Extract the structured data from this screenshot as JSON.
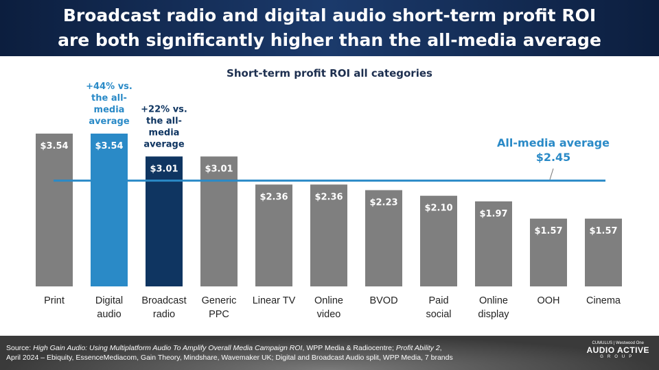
{
  "header": {
    "title_line1": "Broadcast radio and digital audio short-term profit ROI",
    "title_line2": "are both significantly higher than the all-media average"
  },
  "chart_data": {
    "type": "bar",
    "title": "Short-term profit ROI all categories",
    "categories": [
      [
        "Print"
      ],
      [
        "Digital",
        "audio"
      ],
      [
        "Broadcast",
        "radio"
      ],
      [
        "Generic",
        "PPC"
      ],
      [
        "Linear TV"
      ],
      [
        "Online",
        "video"
      ],
      [
        "BVOD"
      ],
      [
        "Paid",
        "social"
      ],
      [
        "Online",
        "display"
      ],
      [
        "OOH"
      ],
      [
        "Cinema"
      ]
    ],
    "values": [
      3.54,
      3.54,
      3.01,
      3.01,
      2.36,
      2.36,
      2.23,
      2.1,
      1.97,
      1.57,
      1.57
    ],
    "data_labels": [
      "$3.54",
      "$3.54",
      "$3.01",
      "$3.01",
      "$2.36",
      "$2.36",
      "$2.23",
      "$2.10",
      "$1.97",
      "$1.57",
      "$1.57"
    ],
    "colors": [
      "#7f7f7f",
      "#2a8ac7",
      "#0f3561",
      "#7f7f7f",
      "#7f7f7f",
      "#7f7f7f",
      "#7f7f7f",
      "#7f7f7f",
      "#7f7f7f",
      "#7f7f7f",
      "#7f7f7f"
    ],
    "average": {
      "value": 2.45,
      "label_line1": "All-media average",
      "label_line2": "$2.45",
      "color": "#2a8ac7"
    },
    "annotations": [
      {
        "category_index": 1,
        "lines": [
          "+44% vs.",
          "the all-",
          "media",
          "average"
        ],
        "color": "#2a8ac7"
      },
      {
        "category_index": 2,
        "lines": [
          "+22% vs.",
          "the all-",
          "media",
          "average"
        ],
        "color": "#0f3561"
      }
    ],
    "ylim": [
      0,
      3.54
    ]
  },
  "footer": {
    "source_prefix": "Source: ",
    "source_italic1": "High Gain Audio: Using Multiplatform Audio To Amplify Overall Media Campaign ROI",
    "source_mid": ", WPP Media & Radiocentre; ",
    "source_italic2": "Profit Ability 2",
    "source_line2": "April 2024 – Ebiquity, EssenceMediacom, Gain Theory, Mindshare, Wavemaker UK; Digital and Broadcast Audio split, WPP Media, 7 brands"
  },
  "logo": {
    "top": "CUMULUS | Westwood One",
    "main": "AUDIO ACTIVE",
    "group": "GROUP"
  }
}
